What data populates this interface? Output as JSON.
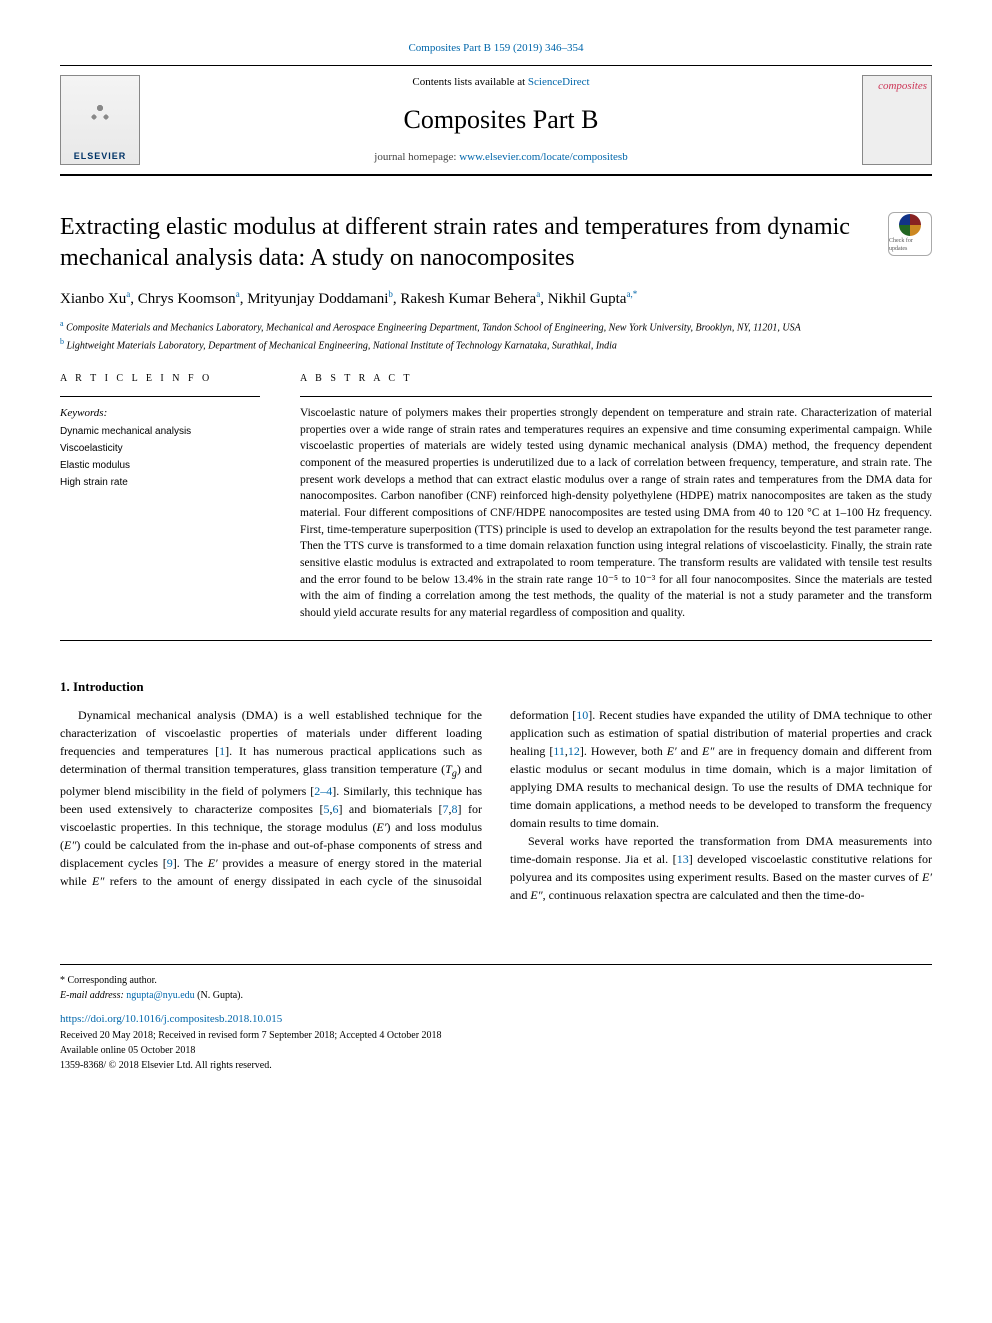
{
  "header": {
    "top_citation": "Composites Part B 159 (2019) 346–354",
    "contents_prefix": "Contents lists available at ",
    "contents_link": "ScienceDirect",
    "journal_name": "Composites Part B",
    "homepage_prefix": "journal homepage: ",
    "homepage_link": "www.elsevier.com/locate/compositesb",
    "publisher_logo_text": "ELSEVIER",
    "cover_text": "composites"
  },
  "article": {
    "title": "Extracting elastic modulus at different strain rates and temperatures from dynamic mechanical analysis data: A study on nanocomposites",
    "crossmark_label": "Check for updates",
    "authors_html": "Xianbo Xu<sup>a</sup>, Chrys Koomson<sup>a</sup>, Mrityunjay Doddamani<sup>b</sup>, Rakesh Kumar Behera<sup>a</sup>, Nikhil Gupta<sup>a,*</sup>",
    "authors": [
      {
        "name": "Xianbo Xu",
        "aff": "a"
      },
      {
        "name": "Chrys Koomson",
        "aff": "a"
      },
      {
        "name": "Mrityunjay Doddamani",
        "aff": "b"
      },
      {
        "name": "Rakesh Kumar Behera",
        "aff": "a"
      },
      {
        "name": "Nikhil Gupta",
        "aff": "a,*"
      }
    ],
    "affiliations": [
      {
        "sup": "a",
        "text": "Composite Materials and Mechanics Laboratory, Mechanical and Aerospace Engineering Department, Tandon School of Engineering, New York University, Brooklyn, NY, 11201, USA"
      },
      {
        "sup": "b",
        "text": "Lightweight Materials Laboratory, Department of Mechanical Engineering, National Institute of Technology Karnataka, Surathkal, India"
      }
    ]
  },
  "info": {
    "heading": "A R T I C L E  I N F O",
    "keywords_label": "Keywords:",
    "keywords": [
      "Dynamic mechanical analysis",
      "Viscoelasticity",
      "Elastic modulus",
      "High strain rate"
    ]
  },
  "abstract": {
    "heading": "A B S T R A C T",
    "text": "Viscoelastic nature of polymers makes their properties strongly dependent on temperature and strain rate. Characterization of material properties over a wide range of strain rates and temperatures requires an expensive and time consuming experimental campaign. While viscoelastic properties of materials are widely tested using dynamic mechanical analysis (DMA) method, the frequency dependent component of the measured properties is underutilized due to a lack of correlation between frequency, temperature, and strain rate. The present work develops a method that can extract elastic modulus over a range of strain rates and temperatures from the DMA data for nanocomposites. Carbon nanofiber (CNF) reinforced high-density polyethylene (HDPE) matrix nanocomposites are taken as the study material. Four different compositions of CNF/HDPE nanocomposites are tested using DMA from 40 to 120 °C at 1–100 Hz frequency. First, time-temperature superposition (TTS) principle is used to develop an extrapolation for the results beyond the test parameter range. Then the TTS curve is transformed to a time domain relaxation function using integral relations of viscoelasticity. Finally, the strain rate sensitive elastic modulus is extracted and extrapolated to room temperature. The transform results are validated with tensile test results and the error found to be below 13.4% in the strain rate range 10⁻⁵ to 10⁻³ for all four nanocomposites. Since the materials are tested with the aim of finding a correlation among the test methods, the quality of the material is not a study parameter and the transform should yield accurate results for any material regardless of composition and quality."
  },
  "body": {
    "section_heading": "1. Introduction",
    "para1_pre": "Dynamical mechanical analysis (DMA) is a well established technique for the characterization of viscoelastic properties of materials under different loading frequencies and temperatures [",
    "ref1": "1",
    "para1_mid1": "]. It has numerous practical applications such as determination of thermal transition temperatures, glass transition temperature (",
    "tg": "T",
    "tg_sub": "g",
    "para1_mid2": ") and polymer blend miscibility in the field of polymers [",
    "ref2_4": "2–4",
    "para1_mid3": "]. Similarly, this technique has been used extensively to characterize composites [",
    "ref5": "5",
    "ref6": "6",
    "para1_mid4": "] and biomaterials [",
    "ref7": "7",
    "ref8": "8",
    "para1_mid5": "] for viscoelastic properties. In this technique, the storage modulus (",
    "eprime": "E′",
    "para1_mid6": ") and loss modulus (",
    "edprime": "E″",
    "para1_mid7": ") could be calculated from the in-phase and out-of-phase components of stress and displacement cycles [",
    "ref9": "9",
    "para1_mid8": "]. The ",
    "para1_mid9": " provides a measure of energy stored in the material while ",
    "para1_mid10": " refers to the amount of energy dissipated in each cycle of the sinusoidal deformation [",
    "ref10": "10",
    "para1_mid11": "]. Recent studies have expanded the utility of DMA technique to other application such as estimation of spatial distribution of material properties and crack healing [",
    "ref11": "11",
    "ref12": "12",
    "para1_mid12": "]. However, both ",
    "para1_mid13": " and ",
    "para1_mid14": " are in frequency domain and different from elastic modulus or secant modulus in time domain, which is a major limitation of applying DMA results to mechanical design. To use the results of DMA technique for time domain applications, a method needs to be developed to transform the frequency domain results to time domain.",
    "para2_pre": "Several works have reported the transformation from DMA measurements into time-domain response. Jia et al. [",
    "ref13": "13",
    "para2_mid1": "] developed viscoelastic constitutive relations for polyurea and its composites using experiment results. Based on the master curves of ",
    "para2_mid2": " and ",
    "para2_mid3": ", continuous relaxation spectra are calculated and then the time-do-",
    "comma": ","
  },
  "footer": {
    "corresponding": "* Corresponding author.",
    "email_label": "E-mail address: ",
    "email": "ngupta@nyu.edu",
    "email_suffix": " (N. Gupta).",
    "doi": "https://doi.org/10.1016/j.compositesb.2018.10.015",
    "received": "Received 20 May 2018; Received in revised form 7 September 2018; Accepted 4 October 2018",
    "available": "Available online 05 October 2018",
    "copyright": "1359-8368/ © 2018 Elsevier Ltd. All rights reserved."
  },
  "colors": {
    "link": "#0066aa",
    "text": "#000000",
    "background": "#ffffff",
    "rule": "#000000"
  }
}
